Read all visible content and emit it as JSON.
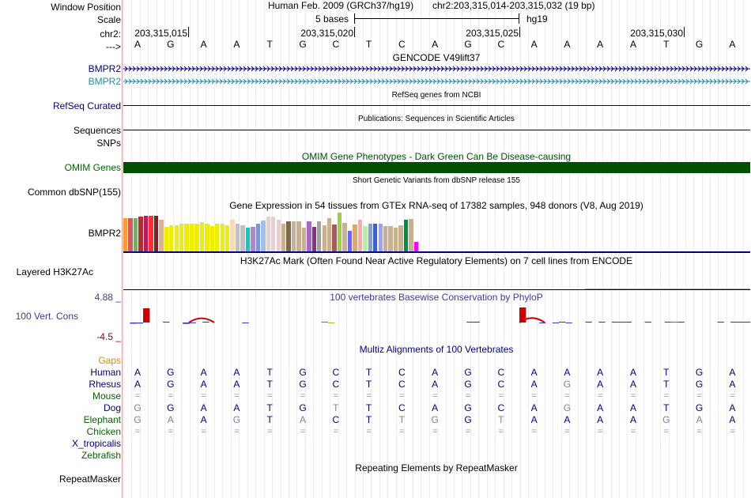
{
  "colors": {
    "navy": "#000080",
    "teal": "#1f8ab0",
    "darkgreen": "#005000",
    "omim": "#005000",
    "orange": "#d78b0c",
    "gray": "#7f7f9f",
    "phylo": "#3b3b9b",
    "red": "#d00000"
  },
  "header": {
    "window_position_label": "Window Position",
    "scale_label": "Scale",
    "chr_label": "chr2:",
    "strand_label": "--->",
    "title_left": "Human Feb. 2009 (GRCh37/hg19)",
    "title_right": "chr2:203,315,014-203,315,032 (19 bp)",
    "scale_text": "5 bases",
    "assembly": "hg19",
    "positions": [
      "203,315,015",
      "203,315,020",
      "203,315,025",
      "203,315,030"
    ]
  },
  "dna_bases": [
    "A",
    "G",
    "A",
    "A",
    "T",
    "G",
    "C",
    "T",
    "C",
    "A",
    "G",
    "C",
    "A",
    "A",
    "A",
    "A",
    "T",
    "G",
    "A"
  ],
  "gencode": {
    "title": "GENCODE V49lift37",
    "tracks": [
      {
        "label": "BMPR2",
        "color": "#000080"
      },
      {
        "label": "BMPR2",
        "color": "#1f8ab0"
      }
    ]
  },
  "refseq": {
    "label": "RefSeq Curated",
    "title": "RefSeq genes from NCBI"
  },
  "publications": {
    "label": "Sequences",
    "title": "Publications: Sequences in Scientific Articles"
  },
  "snps_label": "SNPs",
  "omim": {
    "label": "OMIM Genes",
    "title": "OMIM Gene Phenotypes - Dark Green Can Be Disease-causing"
  },
  "dbsnp": {
    "label": "Common dbSNP(155)",
    "title": "Short Genetic Variants from dbSNP release 155"
  },
  "gtex": {
    "label": "BMPR2",
    "title": "Gene Expression in 54 tissues from GTEx RNA-seq of 17382 samples, 948 donors (V8, Aug 2019)",
    "bars": [
      {
        "value": 42,
        "color": "#ff9a30"
      },
      {
        "value": 42,
        "color": "#d25a5a"
      },
      {
        "value": 42,
        "color": "#73b05a"
      },
      {
        "value": 44,
        "color": "#b03030"
      },
      {
        "value": 45,
        "color": "#c0185e"
      },
      {
        "value": 45,
        "color": "#ff2d2d"
      },
      {
        "value": 45,
        "color": "#8a1d1d"
      },
      {
        "value": 40,
        "color": "#e0b090"
      },
      {
        "value": 31,
        "color": "#eeee00"
      },
      {
        "value": 33,
        "color": "#eeee00"
      },
      {
        "value": 33,
        "color": "#eeee00"
      },
      {
        "value": 35,
        "color": "#eeee00"
      },
      {
        "value": 35,
        "color": "#eeee00"
      },
      {
        "value": 35,
        "color": "#eeee00"
      },
      {
        "value": 35,
        "color": "#eeee00"
      },
      {
        "value": 37,
        "color": "#eeee00"
      },
      {
        "value": 35,
        "color": "#eeee00"
      },
      {
        "value": 32,
        "color": "#eeee00"
      },
      {
        "value": 35,
        "color": "#eeee00"
      },
      {
        "value": 35,
        "color": "#eeee00"
      },
      {
        "value": 33,
        "color": "#eeee00"
      },
      {
        "value": 40,
        "color": "#ffd7b0"
      },
      {
        "value": 35,
        "color": "#c0c0c0"
      },
      {
        "value": 33,
        "color": "#c0c0c0"
      },
      {
        "value": 30,
        "color": "#00cccc"
      },
      {
        "value": 31,
        "color": "#aa88cc"
      },
      {
        "value": 35,
        "color": "#7d95d6"
      },
      {
        "value": 39,
        "color": "#a0c0e8"
      },
      {
        "value": 44,
        "color": "#e8cfcf"
      },
      {
        "value": 44,
        "color": "#e8cfcf"
      },
      {
        "value": 40,
        "color": "#e8cfcf"
      },
      {
        "value": 35,
        "color": "#c8b090"
      },
      {
        "value": 38,
        "color": "#7a6a4a"
      },
      {
        "value": 38,
        "color": "#c8b090"
      },
      {
        "value": 38,
        "color": "#c8b090"
      },
      {
        "value": 30,
        "color": "#c8b090"
      },
      {
        "value": 38,
        "color": "#aa66cc"
      },
      {
        "value": 31,
        "color": "#8b2f8b"
      },
      {
        "value": 38,
        "color": "#a0a0a0"
      },
      {
        "value": 33,
        "color": "#c8b090"
      },
      {
        "value": 42,
        "color": "#c8b090"
      },
      {
        "value": 34,
        "color": "#aa5a5a"
      },
      {
        "value": 49,
        "color": "#a0d040"
      },
      {
        "value": 36,
        "color": "#c8b090"
      },
      {
        "value": 26,
        "color": "#6666ff"
      },
      {
        "value": 34,
        "color": "#ddaa66"
      },
      {
        "value": 40,
        "color": "#ffaaaa"
      },
      {
        "value": 32,
        "color": "#bbeeaa"
      },
      {
        "value": 35,
        "color": "#8aa0c0"
      },
      {
        "value": 35,
        "color": "#3a5fd6"
      },
      {
        "value": 35,
        "color": "#a0a0ff"
      },
      {
        "value": 32,
        "color": "#c8b090"
      },
      {
        "value": 32,
        "color": "#c8b090"
      },
      {
        "value": 30,
        "color": "#c8b090"
      },
      {
        "value": 33,
        "color": "#c8b090"
      },
      {
        "value": 40,
        "color": "#009040"
      },
      {
        "value": 41,
        "color": "#c8b090"
      },
      {
        "value": 12,
        "color": "#ff00ff"
      }
    ]
  },
  "h3k27ac": {
    "label": "Layered H3K27Ac",
    "title": "H3K27Ac Mark (Often Found Near Active Regulatory Elements) on 7 cell lines from ENCODE"
  },
  "phylop": {
    "label": "100 Vert. Cons",
    "title": "100 vertebrates Basewise Conservation by PhyloP",
    "ymax": "4.88 _",
    "ymin": "-4.5 _",
    "scores": [
      0,
      -0.3,
      -0.25,
      3.6,
      0,
      0,
      0.15,
      0,
      0,
      -0.35,
      -0.15,
      0,
      0.2,
      0,
      0,
      0,
      0,
      0,
      -0.15,
      0,
      0,
      0,
      0,
      0,
      0,
      0,
      0,
      0,
      0,
      0,
      0.12,
      -0.1,
      0,
      0,
      0,
      0,
      0,
      0,
      0,
      0,
      0,
      0,
      0,
      0,
      0,
      0,
      0,
      0,
      0,
      0,
      0,
      0,
      0.15,
      0.1,
      0,
      0,
      0,
      0,
      0,
      0,
      3.8,
      0,
      0,
      -0.15,
      0,
      -0.1,
      0.05,
      -0.1,
      0,
      0,
      0.2,
      0,
      0.12,
      0,
      0.15,
      0.05,
      0.2,
      0,
      0,
      0.1,
      0,
      0,
      0.12,
      0.15,
      0.1,
      0,
      0,
      0,
      0,
      0,
      0.05,
      0,
      0.1,
      0.2,
      0.15
    ]
  },
  "multiz": {
    "title": "Multiz Alignments of 100 Vertebrates",
    "gaps_label": "Gaps",
    "species": [
      {
        "name": "Human",
        "color": "#000080",
        "bases": [
          "A",
          "G",
          "A",
          "A",
          "T",
          "G",
          "C",
          "T",
          "C",
          "A",
          "G",
          "C",
          "A",
          "A",
          "A",
          "A",
          "T",
          "G",
          "A"
        ],
        "diff": []
      },
      {
        "name": "Rhesus",
        "color": "#000080",
        "bases": [
          "A",
          "G",
          "A",
          "A",
          "T",
          "G",
          "C",
          "T",
          "C",
          "A",
          "G",
          "C",
          "A",
          "G",
          "A",
          "A",
          "T",
          "G",
          "A"
        ],
        "diff": [
          13
        ]
      },
      {
        "name": "Mouse",
        "color": "#006400",
        "bases": [
          "=",
          "=",
          "=",
          "=",
          "=",
          "=",
          "=",
          "=",
          "=",
          "=",
          "=",
          "=",
          "=",
          "=",
          "=",
          "=",
          "=",
          "=",
          "="
        ],
        "diff": []
      },
      {
        "name": "Dog",
        "color": "#000080",
        "bases": [
          "G",
          "G",
          "A",
          "A",
          "T",
          "G",
          "T",
          "T",
          "C",
          "A",
          "G",
          "C",
          "A",
          "G",
          "A",
          "A",
          "T",
          "G",
          "A"
        ],
        "diff": [
          0,
          6,
          13
        ]
      },
      {
        "name": "Elephant",
        "color": "#006400",
        "bases": [
          "G",
          "A",
          "A",
          "G",
          "T",
          "A",
          "C",
          "T",
          "T",
          "G",
          "G",
          "T",
          "A",
          "A",
          "A",
          "A",
          "G",
          "A",
          "A"
        ],
        "diff": [
          0,
          1,
          3,
          5,
          8,
          9,
          11,
          16,
          17
        ]
      },
      {
        "name": "Chicken",
        "color": "#006400",
        "bases": [
          "=",
          "=",
          "=",
          "=",
          "=",
          "=",
          "=",
          "=",
          "=",
          "=",
          "=",
          "=",
          "=",
          "=",
          "=",
          "=",
          "=",
          "=",
          "="
        ],
        "diff": []
      },
      {
        "name": "X_tropicalis",
        "color": "#000080",
        "bases": [],
        "diff": []
      },
      {
        "name": "Zebrafish",
        "color": "#006400",
        "bases": [],
        "diff": []
      }
    ]
  },
  "repeatmasker": {
    "label": "RepeatMasker",
    "title": "Repeating Elements by RepeatMasker"
  }
}
